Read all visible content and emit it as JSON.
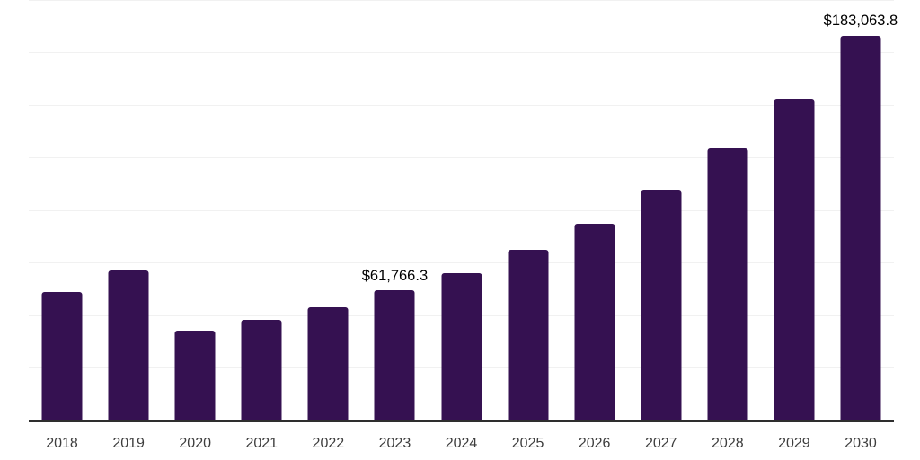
{
  "chart_data": {
    "type": "bar",
    "title": "",
    "xlabel": "",
    "ylabel": "",
    "categories": [
      "2018",
      "2019",
      "2020",
      "2021",
      "2022",
      "2023",
      "2024",
      "2025",
      "2026",
      "2027",
      "2028",
      "2029",
      "2030"
    ],
    "values": [
      61300,
      71300,
      42600,
      47700,
      54000,
      61766.3,
      70200,
      81000,
      93600,
      109600,
      129400,
      153000,
      183063.8
    ],
    "value_labels": [
      null,
      null,
      null,
      null,
      null,
      "$61,766.3",
      null,
      null,
      null,
      null,
      null,
      null,
      "$183,063.8"
    ],
    "ylim": [
      0,
      200000
    ],
    "ytick_step": 25000,
    "ytick_labels_shown": false,
    "grid": "horizontal",
    "legend": "none",
    "bar_color": "#351151",
    "gridline_color": "#f1f1f1",
    "axis_color": "#2e2e2e",
    "value_label_color": "#000000",
    "tick_label_color": "#3d3d3d",
    "background_color": "#ffffff"
  }
}
